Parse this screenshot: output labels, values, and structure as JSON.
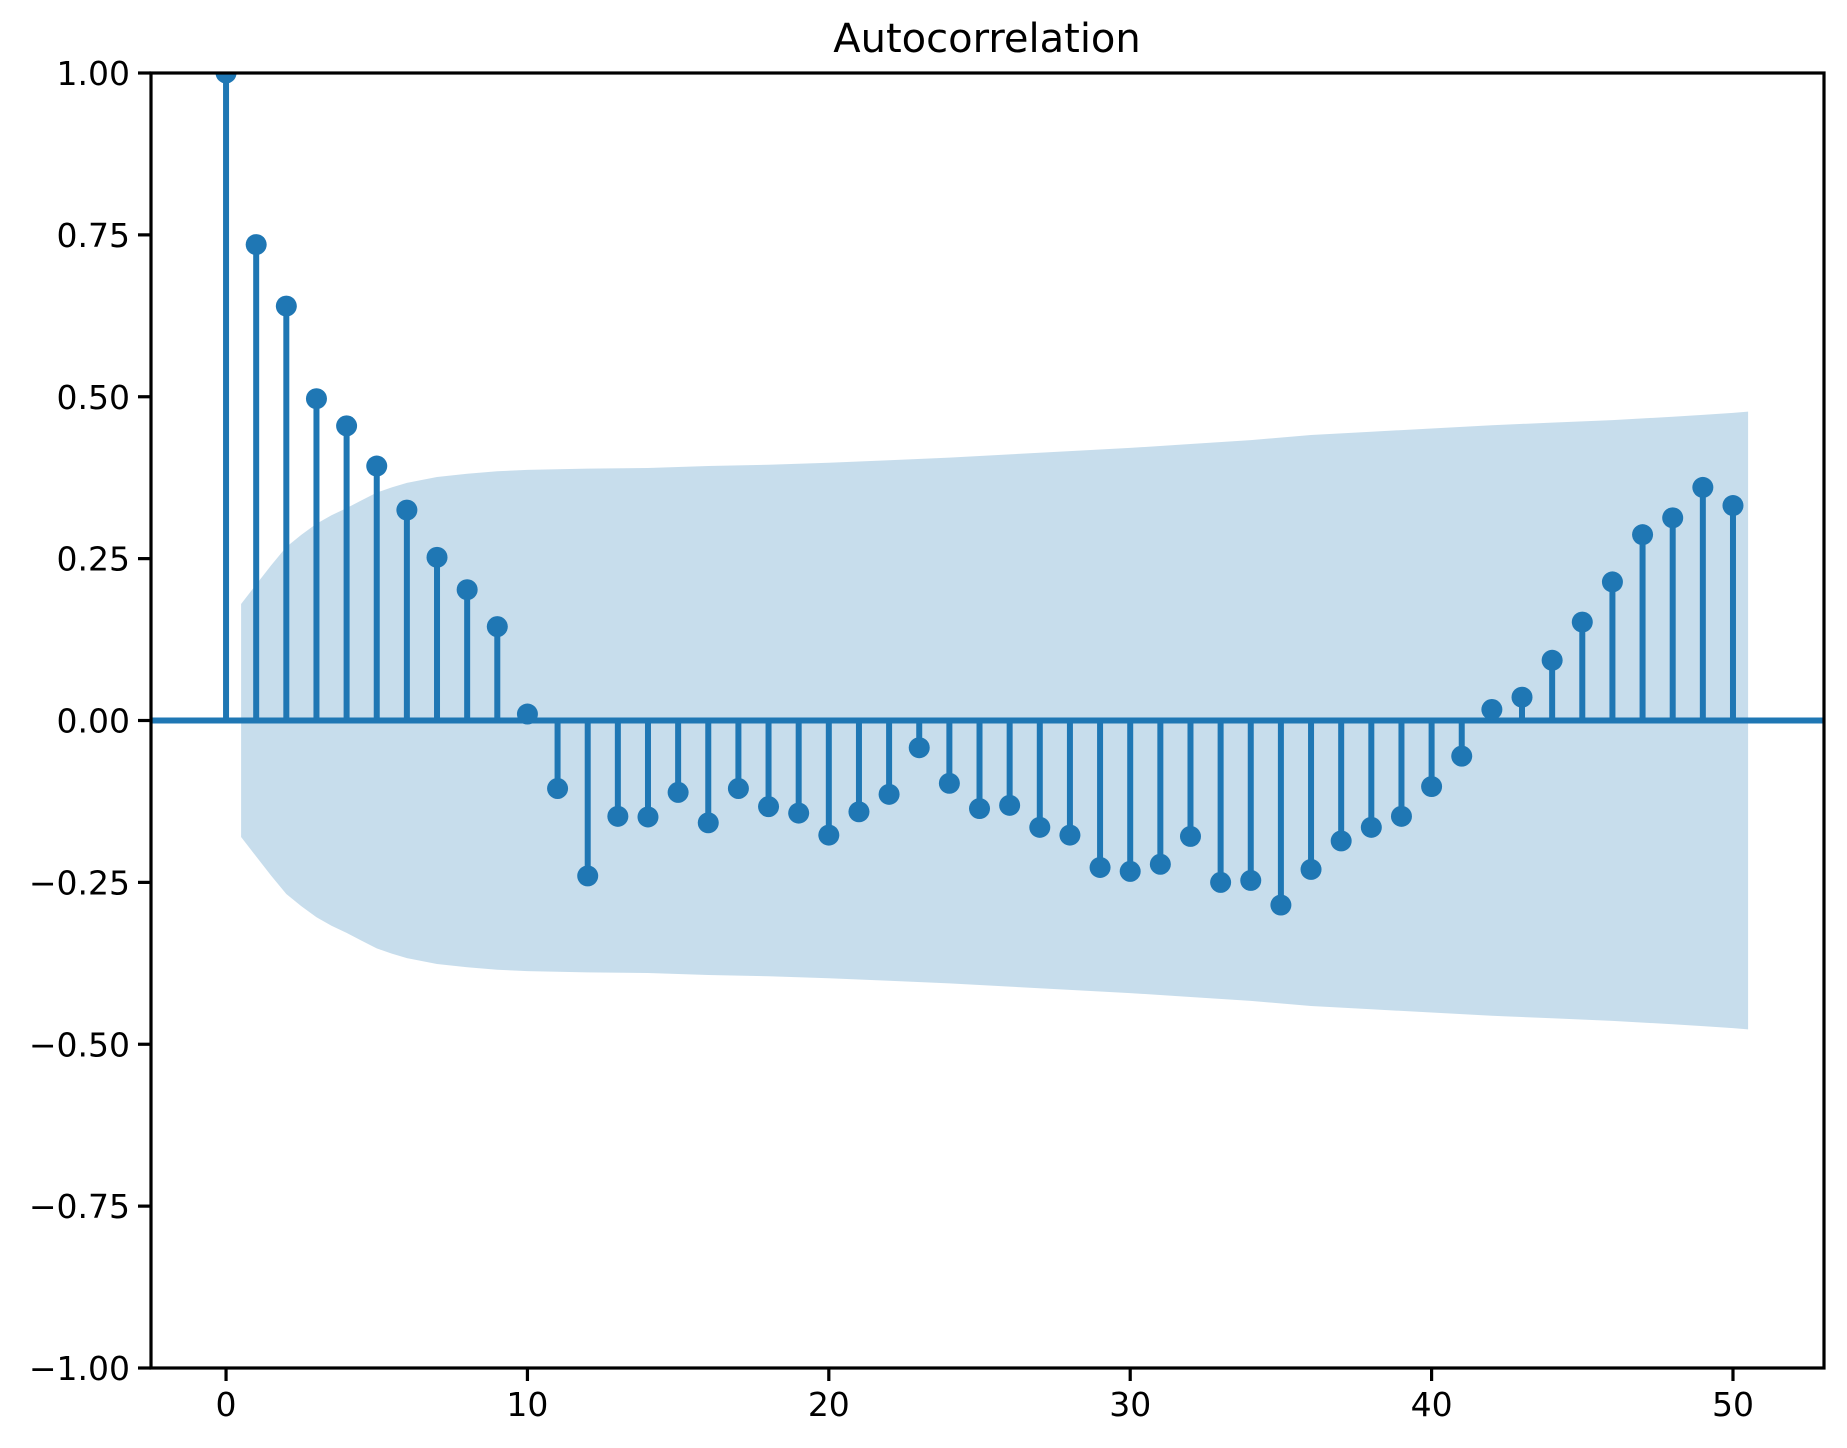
{
  "page": {
    "background_color": "#ffffff"
  },
  "chart_data": {
    "type": "stem",
    "title": "Autocorrelation",
    "xlabel": "",
    "ylabel": "",
    "xlim": [
      -2.49,
      53.02
    ],
    "ylim": [
      -1.0,
      1.0
    ],
    "grid": false,
    "legend": "none",
    "lags": [
      0,
      1,
      2,
      3,
      4,
      5,
      6,
      7,
      8,
      9,
      10,
      11,
      12,
      13,
      14,
      15,
      16,
      17,
      18,
      19,
      20,
      21,
      22,
      23,
      24,
      25,
      26,
      27,
      28,
      29,
      30,
      31,
      32,
      33,
      34,
      35,
      36,
      37,
      38,
      39,
      40,
      41,
      42,
      43,
      44,
      45,
      46,
      47,
      48,
      49,
      50
    ],
    "acf_values": [
      1.0,
      0.735,
      0.64,
      0.497,
      0.455,
      0.393,
      0.325,
      0.252,
      0.202,
      0.145,
      0.01,
      -0.105,
      -0.24,
      -0.148,
      -0.149,
      -0.111,
      -0.158,
      -0.105,
      -0.133,
      -0.143,
      -0.177,
      -0.141,
      -0.114,
      -0.042,
      -0.097,
      -0.136,
      -0.131,
      -0.165,
      -0.177,
      -0.227,
      -0.233,
      -0.222,
      -0.179,
      -0.25,
      -0.247,
      -0.285,
      -0.23,
      -0.186,
      -0.165,
      -0.148,
      -0.102,
      -0.055,
      0.017,
      0.036,
      0.093,
      0.152,
      0.214,
      0.287,
      0.313,
      0.36,
      0.332
    ],
    "confidence_band": {
      "centered_on": 0,
      "symmetric": true,
      "points": [
        {
          "lag": 0.5,
          "ci": 0.18
        },
        {
          "lag": 1,
          "ci": 0.21
        },
        {
          "lag": 1.5,
          "ci": 0.24
        },
        {
          "lag": 2,
          "ci": 0.268
        },
        {
          "lag": 2.5,
          "ci": 0.287
        },
        {
          "lag": 3,
          "ci": 0.304
        },
        {
          "lag": 3.5,
          "ci": 0.317
        },
        {
          "lag": 4,
          "ci": 0.328
        },
        {
          "lag": 4.5,
          "ci": 0.34
        },
        {
          "lag": 5,
          "ci": 0.352
        },
        {
          "lag": 5.5,
          "ci": 0.36
        },
        {
          "lag": 6,
          "ci": 0.367
        },
        {
          "lag": 7,
          "ci": 0.376
        },
        {
          "lag": 8,
          "ci": 0.381
        },
        {
          "lag": 9,
          "ci": 0.385
        },
        {
          "lag": 10,
          "ci": 0.387
        },
        {
          "lag": 12,
          "ci": 0.389
        },
        {
          "lag": 14,
          "ci": 0.39
        },
        {
          "lag": 16,
          "ci": 0.393
        },
        {
          "lag": 18,
          "ci": 0.395
        },
        {
          "lag": 20,
          "ci": 0.398
        },
        {
          "lag": 22,
          "ci": 0.402
        },
        {
          "lag": 24,
          "ci": 0.406
        },
        {
          "lag": 26,
          "ci": 0.411
        },
        {
          "lag": 28,
          "ci": 0.416
        },
        {
          "lag": 30,
          "ci": 0.421
        },
        {
          "lag": 32,
          "ci": 0.427
        },
        {
          "lag": 34,
          "ci": 0.433
        },
        {
          "lag": 36,
          "ci": 0.441
        },
        {
          "lag": 38,
          "ci": 0.446
        },
        {
          "lag": 40,
          "ci": 0.451
        },
        {
          "lag": 42,
          "ci": 0.456
        },
        {
          "lag": 44,
          "ci": 0.46
        },
        {
          "lag": 46,
          "ci": 0.464
        },
        {
          "lag": 48,
          "ci": 0.469
        },
        {
          "lag": 49,
          "ci": 0.472
        },
        {
          "lag": 50,
          "ci": 0.475
        },
        {
          "lag": 50.5,
          "ci": 0.477
        }
      ]
    },
    "xticks": [
      {
        "value": 0,
        "label": "0"
      },
      {
        "value": 10,
        "label": "10"
      },
      {
        "value": 20,
        "label": "20"
      },
      {
        "value": 30,
        "label": "30"
      },
      {
        "value": 40,
        "label": "40"
      },
      {
        "value": 50,
        "label": "50"
      }
    ],
    "yticks": [
      {
        "value": 1.0,
        "label": "1.00"
      },
      {
        "value": 0.75,
        "label": "0.75"
      },
      {
        "value": 0.5,
        "label": "0.50"
      },
      {
        "value": 0.25,
        "label": "0.25"
      },
      {
        "value": 0.0,
        "label": "0.00"
      },
      {
        "value": -0.25,
        "label": "−0.25"
      },
      {
        "value": -0.5,
        "label": "−0.50"
      },
      {
        "value": -0.75,
        "label": "−0.75"
      },
      {
        "value": -1.0,
        "label": "−1.00"
      }
    ],
    "colors": {
      "stem": "#1f77b4",
      "marker": "#1f77b4",
      "zero_line": "#1f77b4",
      "band_fill": "#1f77b4",
      "band_alpha": 0.25,
      "spine": "#000000",
      "tick": "#000000"
    }
  }
}
